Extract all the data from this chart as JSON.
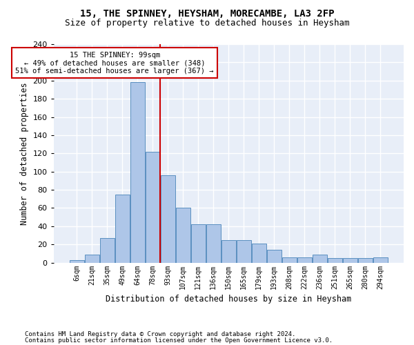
{
  "title": "15, THE SPINNEY, HEYSHAM, MORECAMBE, LA3 2FP",
  "subtitle": "Size of property relative to detached houses in Heysham",
  "xlabel": "Distribution of detached houses by size in Heysham",
  "ylabel": "Number of detached properties",
  "bar_color": "#aec6e8",
  "bar_edge_color": "#5a8fc0",
  "bar_heights": [
    3,
    9,
    27,
    75,
    198,
    122,
    96,
    60,
    42,
    42,
    25,
    25,
    21,
    14,
    6,
    6,
    9,
    5,
    5,
    5,
    6
  ],
  "bin_labels": [
    "6sqm",
    "21sqm",
    "35sqm",
    "49sqm",
    "64sqm",
    "78sqm",
    "93sqm",
    "107sqm",
    "121sqm",
    "136sqm",
    "150sqm",
    "165sqm",
    "179sqm",
    "193sqm",
    "208sqm",
    "222sqm",
    "236sqm",
    "251sqm",
    "265sqm",
    "280sqm",
    "294sqm"
  ],
  "vline_pos": 5.5,
  "vline_color": "#cc0000",
  "annotation_text": "15 THE SPINNEY: 99sqm\n← 49% of detached houses are smaller (348)\n51% of semi-detached houses are larger (367) →",
  "annotation_box_facecolor": "#ffffff",
  "annotation_box_edgecolor": "#cc0000",
  "ylim": [
    0,
    240
  ],
  "yticks": [
    0,
    20,
    40,
    60,
    80,
    100,
    120,
    140,
    160,
    180,
    200,
    220,
    240
  ],
  "background_color": "#e8eef8",
  "footer1": "Contains HM Land Registry data © Crown copyright and database right 2024.",
  "footer2": "Contains public sector information licensed under the Open Government Licence v3.0.",
  "grid_color": "#ffffff",
  "figsize": [
    6.0,
    5.0
  ],
  "dpi": 100
}
